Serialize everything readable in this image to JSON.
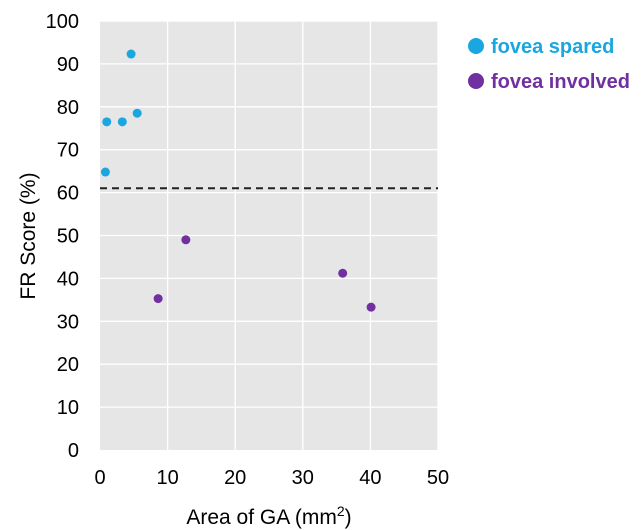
{
  "chart_data": {
    "type": "scatter",
    "xlabel": "Area of GA (mm",
    "xlabel_sup": "2",
    "xlabel_close": ")",
    "ylabel": "FR Score (%)",
    "xlim": [
      0,
      50
    ],
    "ylim": [
      0,
      100
    ],
    "x_ticks": [
      "0",
      "10",
      "20",
      "30",
      "40",
      "50"
    ],
    "y_ticks": [
      "0",
      "10",
      "20",
      "30",
      "40",
      "50",
      "60",
      "70",
      "80",
      "90",
      "100"
    ],
    "grid": true,
    "legend_position": "top-right",
    "reference_line": {
      "y": 61,
      "style": "dashed"
    },
    "series": [
      {
        "name": "fovea spared",
        "color": "#1aa7e0",
        "points": [
          {
            "x": 0.8,
            "y": 64.8
          },
          {
            "x": 1.0,
            "y": 76.5
          },
          {
            "x": 3.3,
            "y": 76.5
          },
          {
            "x": 4.6,
            "y": 92.3
          },
          {
            "x": 5.5,
            "y": 78.5
          }
        ]
      },
      {
        "name": "fovea involved",
        "color": "#7030a0",
        "points": [
          {
            "x": 8.6,
            "y": 35.3
          },
          {
            "x": 12.7,
            "y": 49.0
          },
          {
            "x": 35.9,
            "y": 41.2
          },
          {
            "x": 40.1,
            "y": 33.3
          }
        ]
      }
    ]
  }
}
